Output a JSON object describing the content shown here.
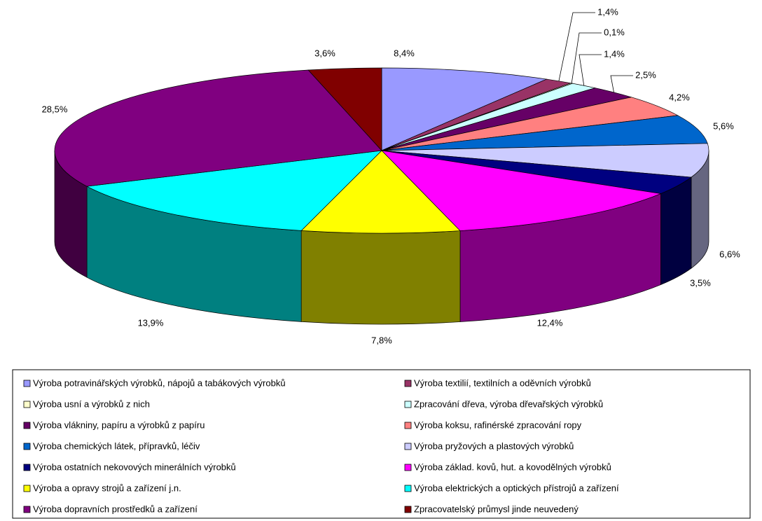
{
  "chart_data": {
    "type": "pie3d",
    "categories": [
      "Výroba potravinářských výrobků, nápojů a tabákových výrobků",
      "Výroba textilií, textilních a oděvních výrobků",
      "Výroba usní a výrobků z nich",
      "Zpracování dřeva, výroba dřevařských výrobků",
      "Výroba vlákniny, papíru a výrobků z papíru",
      "Výroba koksu, rafinérské zpracování ropy",
      "Výroba chemických látek, přípravků, léčiv",
      "Výroba pryžových a plastových výrobků",
      "Výroba ostatních nekovových minerálních výrobků",
      "Výroba základ. kovů, hut. a kovodělných  výrobků",
      "Výroba a opravy strojů a zařízení j.n.",
      "Výroba elektrických a optických přístrojů a zařízení",
      "Výroba dopravních prostředků a zařízení",
      "Zpracovatelský průmysl jinde neuvedený"
    ],
    "values": [
      8.4,
      1.4,
      0.1,
      1.4,
      2.5,
      4.2,
      5.6,
      6.6,
      3.5,
      12.4,
      7.8,
      13.9,
      28.5,
      3.6
    ],
    "value_labels": [
      "8,4%",
      "1,4%",
      "0,1%",
      "1,4%",
      "2,5%",
      "4,2%",
      "5,6%",
      "6,6%",
      "3,5%",
      "12,4%",
      "7,8%",
      "13,9%",
      "28,5%",
      "3,6%"
    ],
    "colors": [
      "#9999ff",
      "#993366",
      "#ffffcc",
      "#ccffff",
      "#660066",
      "#ff8080",
      "#0066cc",
      "#ccccff",
      "#000080",
      "#ff00ff",
      "#ffff00",
      "#00ffff",
      "#800080",
      "#800000"
    ]
  }
}
